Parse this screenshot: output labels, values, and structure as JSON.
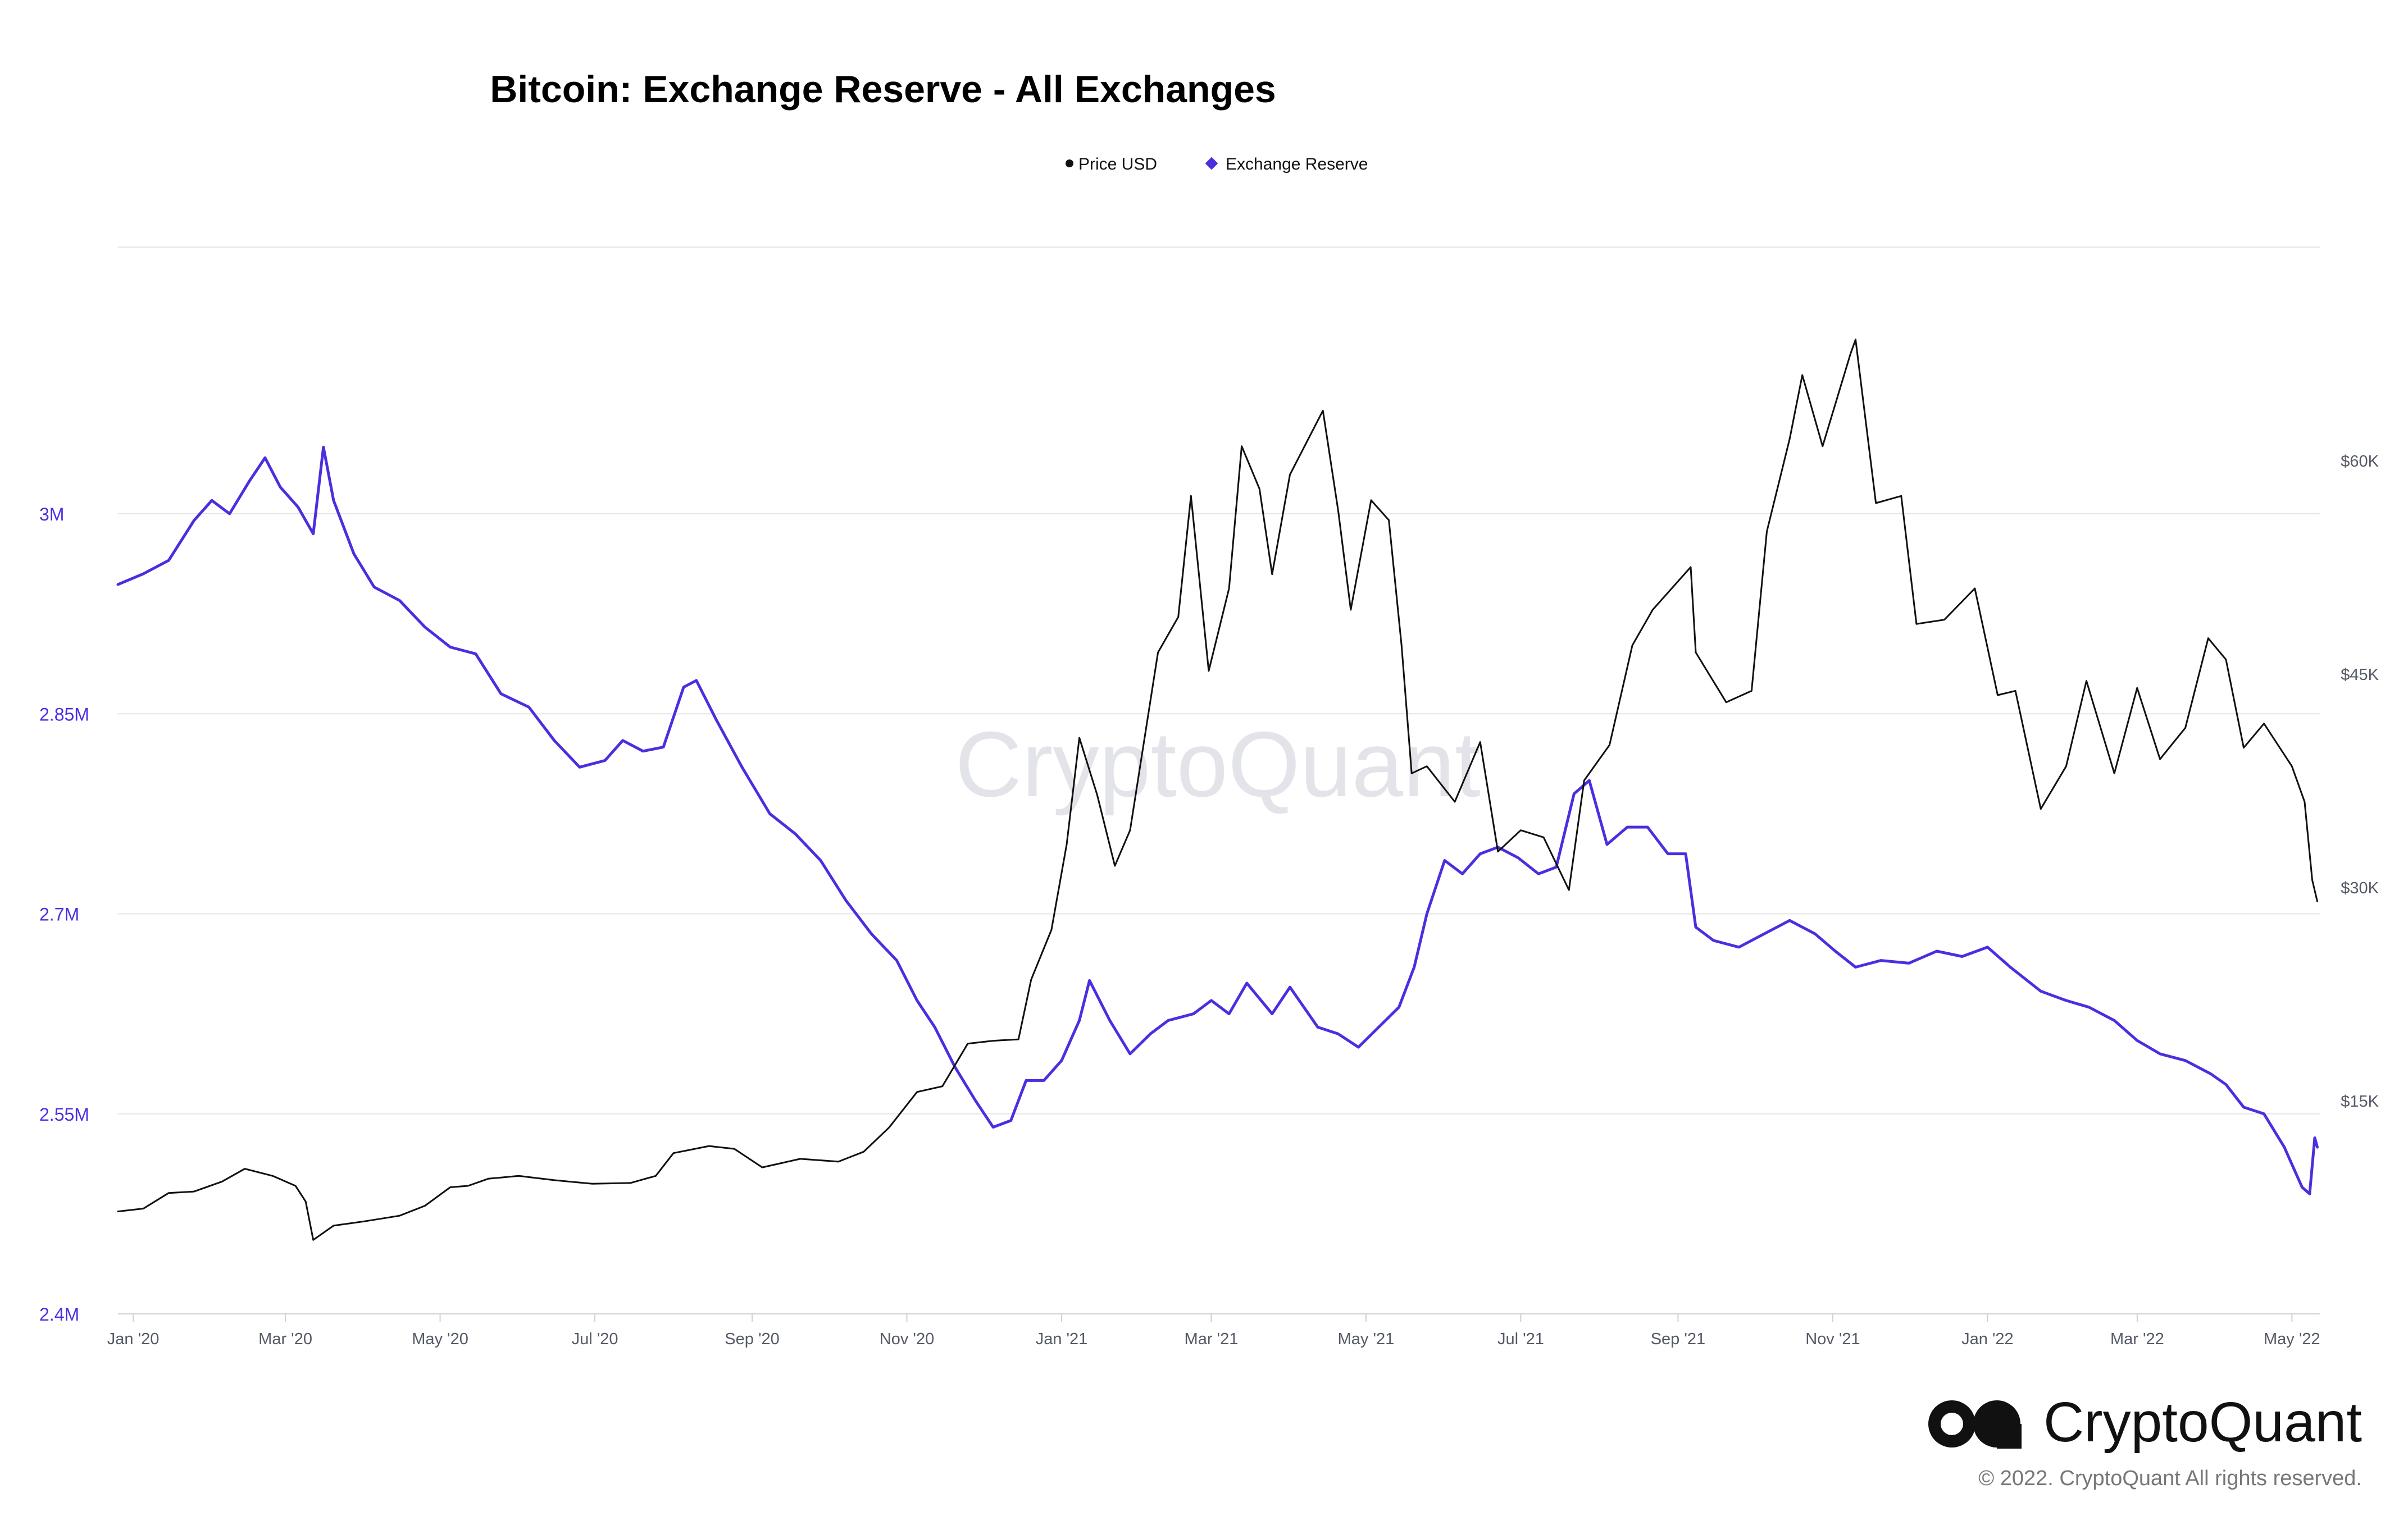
{
  "header": {
    "title": "Bitcoin: Exchange Reserve - All Exchanges"
  },
  "legend": {
    "placement": "top-center",
    "items": [
      {
        "label": "Price USD",
        "color": "#111111",
        "marker": "circle"
      },
      {
        "label": "Exchange Reserve",
        "color": "#4a2fe0",
        "marker": "diamond"
      }
    ]
  },
  "watermark": {
    "text": "CryptoQuant"
  },
  "brand": {
    "name": "CryptoQuant",
    "copyright": "© 2022. CryptoQuant All rights reserved.",
    "icon": "cryptoquant-logo-icon"
  },
  "chart_data": {
    "type": "line",
    "title": "Bitcoin: Exchange Reserve - All Exchanges",
    "x_type": "date",
    "xlim": [
      "2019-12-26",
      "2022-05-12"
    ],
    "x_tick_labels": [
      "Jan '20",
      "Mar '20",
      "May '20",
      "Jul '20",
      "Sep '20",
      "Nov '20",
      "Jan '21",
      "Mar '21",
      "May '21",
      "Jul '21",
      "Sep '21",
      "Nov '21",
      "Jan '22",
      "Mar '22",
      "May '22"
    ],
    "x_ticks": [
      "2020-01-01",
      "2020-03-01",
      "2020-05-01",
      "2020-07-01",
      "2020-09-01",
      "2020-11-01",
      "2021-01-01",
      "2021-03-01",
      "2021-05-01",
      "2021-07-01",
      "2021-09-01",
      "2021-11-01",
      "2022-01-01",
      "2022-03-01",
      "2022-05-01"
    ],
    "y_left": {
      "series": "Exchange Reserve",
      "ylim": [
        2400000,
        3200000
      ],
      "ticks": [
        2400000,
        2550000,
        2700000,
        2850000,
        3000000
      ],
      "tick_labels": [
        "2.4M",
        "2.55M",
        "2.7M",
        "2.85M",
        "3M"
      ]
    },
    "y_right": {
      "series": "Price USD",
      "ylim": [
        0,
        75000
      ],
      "ticks": [
        15000,
        30000,
        45000,
        60000
      ],
      "tick_labels": [
        "$15K",
        "$30K",
        "$45K",
        "$60K"
      ]
    },
    "grid": true,
    "series": [
      {
        "name": "Exchange Reserve",
        "axis": "left",
        "color": "#4a2fe0",
        "points": [
          [
            "2019-12-26",
            2947000
          ],
          [
            "2020-01-05",
            2955000
          ],
          [
            "2020-01-15",
            2965000
          ],
          [
            "2020-01-25",
            2995000
          ],
          [
            "2020-02-01",
            3010000
          ],
          [
            "2020-02-08",
            3000000
          ],
          [
            "2020-02-16",
            3025000
          ],
          [
            "2020-02-22",
            3042000
          ],
          [
            "2020-02-28",
            3020000
          ],
          [
            "2020-03-06",
            3005000
          ],
          [
            "2020-03-12",
            2985000
          ],
          [
            "2020-03-16",
            3050000
          ],
          [
            "2020-03-20",
            3010000
          ],
          [
            "2020-03-28",
            2970000
          ],
          [
            "2020-04-05",
            2945000
          ],
          [
            "2020-04-15",
            2935000
          ],
          [
            "2020-04-25",
            2915000
          ],
          [
            "2020-05-05",
            2900000
          ],
          [
            "2020-05-15",
            2895000
          ],
          [
            "2020-05-25",
            2865000
          ],
          [
            "2020-06-05",
            2855000
          ],
          [
            "2020-06-15",
            2830000
          ],
          [
            "2020-06-25",
            2810000
          ],
          [
            "2020-07-05",
            2815000
          ],
          [
            "2020-07-12",
            2830000
          ],
          [
            "2020-07-20",
            2822000
          ],
          [
            "2020-07-28",
            2825000
          ],
          [
            "2020-08-05",
            2870000
          ],
          [
            "2020-08-10",
            2875000
          ],
          [
            "2020-08-18",
            2845000
          ],
          [
            "2020-08-28",
            2810000
          ],
          [
            "2020-09-08",
            2775000
          ],
          [
            "2020-09-18",
            2760000
          ],
          [
            "2020-09-28",
            2740000
          ],
          [
            "2020-10-08",
            2710000
          ],
          [
            "2020-10-18",
            2685000
          ],
          [
            "2020-10-28",
            2665000
          ],
          [
            "2020-11-05",
            2635000
          ],
          [
            "2020-11-12",
            2615000
          ],
          [
            "2020-11-20",
            2585000
          ],
          [
            "2020-11-28",
            2560000
          ],
          [
            "2020-12-05",
            2540000
          ],
          [
            "2020-12-12",
            2545000
          ],
          [
            "2020-12-18",
            2575000
          ],
          [
            "2020-12-25",
            2575000
          ],
          [
            "2021-01-01",
            2590000
          ],
          [
            "2021-01-08",
            2620000
          ],
          [
            "2021-01-12",
            2650000
          ],
          [
            "2021-01-20",
            2620000
          ],
          [
            "2021-01-28",
            2595000
          ],
          [
            "2021-02-05",
            2610000
          ],
          [
            "2021-02-12",
            2620000
          ],
          [
            "2021-02-22",
            2625000
          ],
          [
            "2021-03-01",
            2635000
          ],
          [
            "2021-03-08",
            2625000
          ],
          [
            "2021-03-15",
            2648000
          ],
          [
            "2021-03-25",
            2625000
          ],
          [
            "2021-04-01",
            2645000
          ],
          [
            "2021-04-12",
            2615000
          ],
          [
            "2021-04-20",
            2610000
          ],
          [
            "2021-04-28",
            2600000
          ],
          [
            "2021-05-06",
            2615000
          ],
          [
            "2021-05-14",
            2630000
          ],
          [
            "2021-05-20",
            2660000
          ],
          [
            "2021-05-25",
            2700000
          ],
          [
            "2021-06-01",
            2740000
          ],
          [
            "2021-06-08",
            2730000
          ],
          [
            "2021-06-15",
            2745000
          ],
          [
            "2021-06-22",
            2750000
          ],
          [
            "2021-06-30",
            2742000
          ],
          [
            "2021-07-08",
            2730000
          ],
          [
            "2021-07-15",
            2735000
          ],
          [
            "2021-07-22",
            2790000
          ],
          [
            "2021-07-28",
            2800000
          ],
          [
            "2021-08-04",
            2752000
          ],
          [
            "2021-08-12",
            2765000
          ],
          [
            "2021-08-20",
            2765000
          ],
          [
            "2021-08-28",
            2745000
          ],
          [
            "2021-09-04",
            2745000
          ],
          [
            "2021-09-08",
            2690000
          ],
          [
            "2021-09-15",
            2680000
          ],
          [
            "2021-09-25",
            2675000
          ],
          [
            "2021-10-05",
            2685000
          ],
          [
            "2021-10-15",
            2695000
          ],
          [
            "2021-10-25",
            2685000
          ],
          [
            "2021-11-02",
            2672000
          ],
          [
            "2021-11-10",
            2660000
          ],
          [
            "2021-11-20",
            2665000
          ],
          [
            "2021-12-01",
            2663000
          ],
          [
            "2021-12-12",
            2672000
          ],
          [
            "2021-12-22",
            2668000
          ],
          [
            "2022-01-01",
            2675000
          ],
          [
            "2022-01-10",
            2660000
          ],
          [
            "2022-01-22",
            2642000
          ],
          [
            "2022-02-01",
            2635000
          ],
          [
            "2022-02-10",
            2630000
          ],
          [
            "2022-02-20",
            2620000
          ],
          [
            "2022-03-01",
            2605000
          ],
          [
            "2022-03-10",
            2595000
          ],
          [
            "2022-03-20",
            2590000
          ],
          [
            "2022-03-30",
            2580000
          ],
          [
            "2022-04-05",
            2572000
          ],
          [
            "2022-04-12",
            2555000
          ],
          [
            "2022-04-20",
            2550000
          ],
          [
            "2022-04-28",
            2525000
          ],
          [
            "2022-05-05",
            2495000
          ],
          [
            "2022-05-08",
            2490000
          ],
          [
            "2022-05-10",
            2532000
          ],
          [
            "2022-05-11",
            2525000
          ]
        ]
      },
      {
        "name": "Price USD",
        "axis": "right",
        "color": "#111111",
        "points": [
          [
            "2019-12-26",
            7200
          ],
          [
            "2020-01-05",
            7400
          ],
          [
            "2020-01-15",
            8500
          ],
          [
            "2020-01-25",
            8600
          ],
          [
            "2020-02-05",
            9300
          ],
          [
            "2020-02-14",
            10200
          ],
          [
            "2020-02-25",
            9700
          ],
          [
            "2020-03-05",
            9000
          ],
          [
            "2020-03-09",
            7900
          ],
          [
            "2020-03-12",
            5200
          ],
          [
            "2020-03-20",
            6200
          ],
          [
            "2020-04-01",
            6500
          ],
          [
            "2020-04-15",
            6900
          ],
          [
            "2020-04-25",
            7600
          ],
          [
            "2020-05-05",
            8900
          ],
          [
            "2020-05-12",
            9000
          ],
          [
            "2020-05-20",
            9500
          ],
          [
            "2020-06-01",
            9700
          ],
          [
            "2020-06-15",
            9400
          ],
          [
            "2020-06-30",
            9150
          ],
          [
            "2020-07-15",
            9200
          ],
          [
            "2020-07-25",
            9700
          ],
          [
            "2020-08-01",
            11300
          ],
          [
            "2020-08-15",
            11800
          ],
          [
            "2020-08-25",
            11600
          ],
          [
            "2020-09-05",
            10300
          ],
          [
            "2020-09-20",
            10900
          ],
          [
            "2020-10-05",
            10700
          ],
          [
            "2020-10-15",
            11400
          ],
          [
            "2020-10-25",
            13100
          ],
          [
            "2020-11-05",
            15600
          ],
          [
            "2020-11-15",
            16000
          ],
          [
            "2020-11-25",
            19000
          ],
          [
            "2020-12-05",
            19200
          ],
          [
            "2020-12-15",
            19300
          ],
          [
            "2020-12-20",
            23500
          ],
          [
            "2020-12-28",
            27000
          ],
          [
            "2021-01-03",
            33000
          ],
          [
            "2021-01-08",
            40500
          ],
          [
            "2021-01-15",
            36500
          ],
          [
            "2021-01-22",
            31500
          ],
          [
            "2021-01-28",
            34000
          ],
          [
            "2021-02-08",
            46500
          ],
          [
            "2021-02-16",
            49000
          ],
          [
            "2021-02-21",
            57500
          ],
          [
            "2021-02-28",
            45200
          ],
          [
            "2021-03-08",
            51000
          ],
          [
            "2021-03-13",
            61000
          ],
          [
            "2021-03-20",
            58000
          ],
          [
            "2021-03-25",
            52000
          ],
          [
            "2021-04-01",
            59000
          ],
          [
            "2021-04-14",
            63500
          ],
          [
            "2021-04-20",
            56500
          ],
          [
            "2021-04-25",
            49500
          ],
          [
            "2021-05-03",
            57200
          ],
          [
            "2021-05-10",
            55800
          ],
          [
            "2021-05-15",
            47000
          ],
          [
            "2021-05-19",
            38000
          ],
          [
            "2021-05-25",
            38500
          ],
          [
            "2021-06-05",
            36000
          ],
          [
            "2021-06-15",
            40200
          ],
          [
            "2021-06-22",
            32500
          ],
          [
            "2021-07-01",
            34000
          ],
          [
            "2021-07-10",
            33500
          ],
          [
            "2021-07-20",
            29800
          ],
          [
            "2021-07-26",
            37500
          ],
          [
            "2021-08-05",
            40000
          ],
          [
            "2021-08-14",
            47000
          ],
          [
            "2021-08-22",
            49500
          ],
          [
            "2021-09-06",
            52500
          ],
          [
            "2021-09-08",
            46500
          ],
          [
            "2021-09-20",
            43000
          ],
          [
            "2021-09-30",
            43800
          ],
          [
            "2021-10-06",
            55000
          ],
          [
            "2021-10-15",
            61500
          ],
          [
            "2021-10-20",
            66000
          ],
          [
            "2021-10-28",
            61000
          ],
          [
            "2021-11-08",
            67500
          ],
          [
            "2021-11-10",
            68500
          ],
          [
            "2021-11-18",
            57000
          ],
          [
            "2021-11-28",
            57500
          ],
          [
            "2021-12-04",
            48500
          ],
          [
            "2021-12-15",
            48800
          ],
          [
            "2021-12-27",
            51000
          ],
          [
            "2022-01-05",
            43500
          ],
          [
            "2022-01-12",
            43800
          ],
          [
            "2022-01-22",
            35500
          ],
          [
            "2022-02-01",
            38500
          ],
          [
            "2022-02-09",
            44500
          ],
          [
            "2022-02-20",
            38000
          ],
          [
            "2022-03-01",
            44000
          ],
          [
            "2022-03-10",
            39000
          ],
          [
            "2022-03-20",
            41200
          ],
          [
            "2022-03-29",
            47500
          ],
          [
            "2022-04-05",
            46000
          ],
          [
            "2022-04-12",
            39800
          ],
          [
            "2022-04-20",
            41500
          ],
          [
            "2022-05-01",
            38500
          ],
          [
            "2022-05-06",
            36000
          ],
          [
            "2022-05-09",
            30500
          ],
          [
            "2022-05-11",
            29000
          ]
        ]
      }
    ]
  }
}
